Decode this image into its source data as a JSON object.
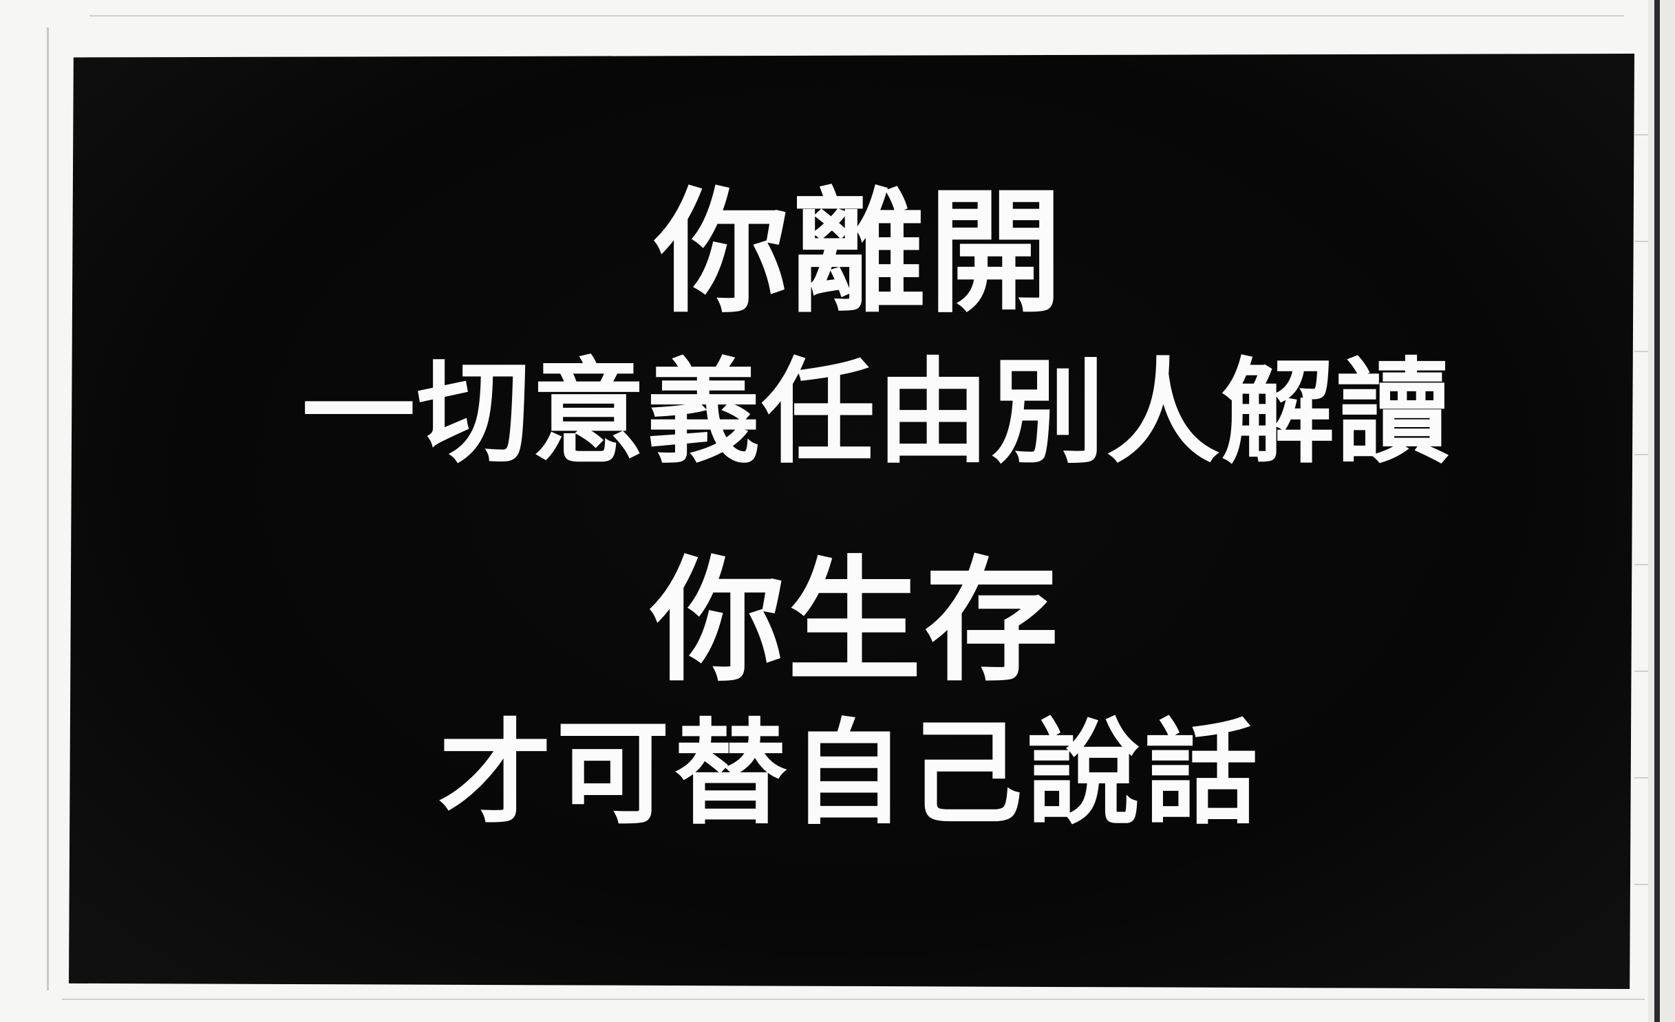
{
  "sign": {
    "line1": "你離開",
    "line2": "一切意義任由別人解讀",
    "line3": "你生存",
    "line4": "才可替自己說話"
  },
  "colors": {
    "background_panel": "#080808",
    "text": "#fbfbfb",
    "paper": "#f6f6f4"
  }
}
